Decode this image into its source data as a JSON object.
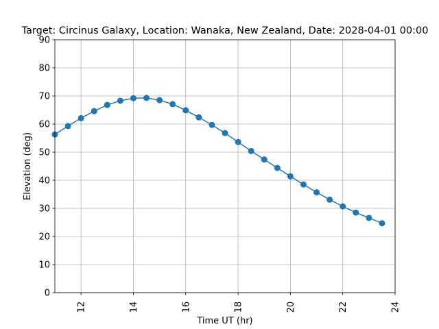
{
  "chart_data": {
    "type": "line",
    "title": "Target: Circinus Galaxy,  Location: Wanaka, New Zealand, Date: 2028-04-01 00:00",
    "xlabel": "Time UT (hr)",
    "ylabel": "Elevation (deg)",
    "xlim": [
      11,
      24
    ],
    "ylim": [
      0,
      90
    ],
    "xticks": [
      12,
      14,
      16,
      18,
      20,
      22,
      24
    ],
    "yticks": [
      0,
      10,
      20,
      30,
      40,
      50,
      60,
      70,
      80,
      90
    ],
    "grid": true,
    "color": "#1f77b4",
    "series": [
      {
        "x": [
          11.0,
          11.5,
          12.0,
          12.5,
          13.0,
          13.5,
          14.0,
          14.5,
          15.0,
          15.5,
          16.0,
          16.5,
          17.0,
          17.5,
          18.0,
          18.5,
          19.0,
          19.5,
          20.0,
          20.5,
          21.0,
          21.5,
          22.0,
          22.5,
          23.0,
          23.5
        ],
        "y": [
          56.3,
          59.3,
          62.1,
          64.6,
          66.8,
          68.3,
          69.2,
          69.3,
          68.5,
          67.1,
          64.9,
          62.4,
          59.7,
          56.8,
          53.6,
          50.4,
          47.4,
          44.4,
          41.4,
          38.5,
          35.7,
          33.1,
          30.7,
          28.5,
          26.6,
          24.7
        ]
      }
    ]
  }
}
